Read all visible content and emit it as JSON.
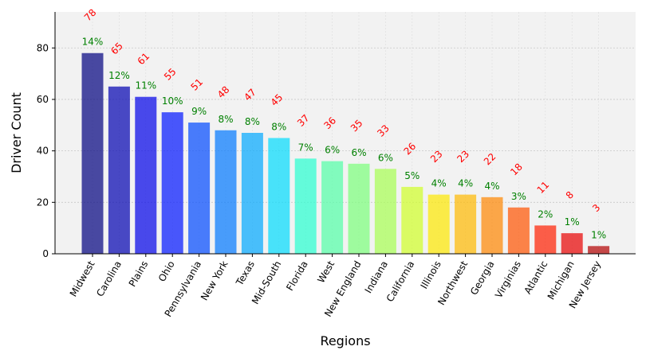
{
  "chart_data": {
    "type": "bar",
    "title": "",
    "xlabel": "Regions",
    "ylabel": "Driver Count",
    "ylim": [
      0,
      94
    ],
    "yticks": [
      0,
      20,
      40,
      60,
      80
    ],
    "grid": true,
    "legend": "none",
    "categories": [
      "Midwest",
      "Carolina",
      "Plains",
      "Ohio",
      "Pennsylvania",
      "New York",
      "Texas",
      "Mid-South",
      "Florida",
      "West",
      "New England",
      "Indiana",
      "California",
      "Illinois",
      "Northwest",
      "Georgia",
      "Virginias",
      "Atlantic",
      "Michigan",
      "New Jersey"
    ],
    "values": [
      78,
      65,
      61,
      55,
      51,
      48,
      47,
      45,
      37,
      36,
      35,
      33,
      26,
      23,
      23,
      22,
      18,
      11,
      8,
      3
    ],
    "percent_labels": [
      "14%",
      "12%",
      "11%",
      "10%",
      "9%",
      "8%",
      "8%",
      "8%",
      "7%",
      "6%",
      "6%",
      "6%",
      "5%",
      "4%",
      "4%",
      "4%",
      "3%",
      "2%",
      "1%",
      "1%"
    ],
    "bar_colors": [
      "#00007f",
      "#0000b0",
      "#0000e8",
      "#0014ff",
      "#0048ff",
      "#0078ff",
      "#00a8ff",
      "#00dcfe",
      "#26ffd0",
      "#51ffa6",
      "#7bff7b",
      "#a6ff51",
      "#d0ff26",
      "#fde800",
      "#ffb900",
      "#ff8600",
      "#ff5200",
      "#ff1e00",
      "#e80000",
      "#b20000"
    ],
    "bar_opacity": 0.7,
    "count_label_color": "#ff0000",
    "percent_label_color": "#008000",
    "plot_background": "#f2f2f2"
  }
}
